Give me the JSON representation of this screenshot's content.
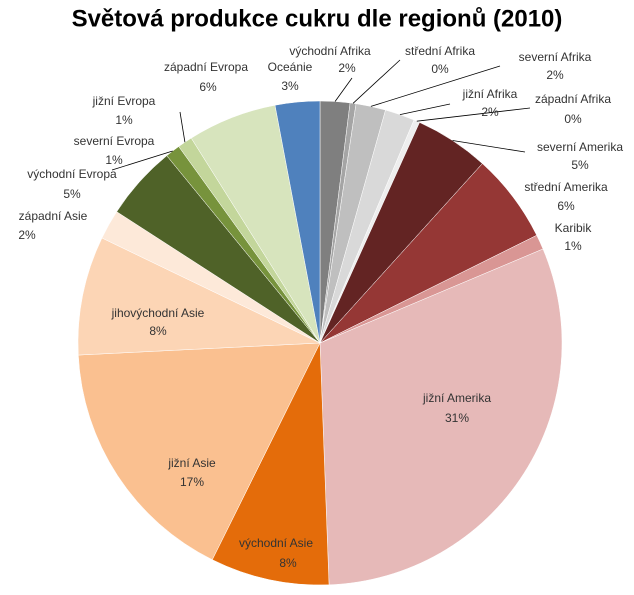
{
  "chart_data": {
    "type": "pie",
    "title": "Světová produkce cukru dle regionů (2010)",
    "categories": [
      "východní Afrika",
      "střední Afrika",
      "severní Afrika",
      "jižní Afrika",
      "západní Afrika",
      "severní Amerika",
      "střední Amerika",
      "Karibik",
      "jižní Amerika",
      "východní Asie",
      "jižní Asie",
      "jihovýchodní Asie",
      "západní Asie",
      "východní Evropa",
      "severní Evropa",
      "jižní Evropa",
      "západní Evropa",
      "Oceánie"
    ],
    "values": [
      2,
      0.4,
      2,
      2,
      0.4,
      5,
      6,
      1,
      31,
      8,
      17,
      8,
      2,
      5,
      1,
      1,
      6,
      3
    ],
    "value_labels": [
      "2%",
      "0%",
      "2%",
      "2%",
      "0%",
      "5%",
      "6%",
      "1%",
      "31%",
      "8%",
      "17%",
      "8%",
      "2%",
      "5%",
      "1%",
      "1%",
      "6%",
      "3%"
    ],
    "colors": [
      "#7f7f7f",
      "#a5a5a5",
      "#bfbfbf",
      "#d9d9d9",
      "#eeeeee",
      "#632423",
      "#953735",
      "#d99694",
      "#e6b9b8",
      "#e46c0a",
      "#fac090",
      "#fcd5b5",
      "#fde9d9",
      "#4f6228",
      "#77933c",
      "#c3d69b",
      "#d7e4bd",
      "#4f81bd"
    ]
  }
}
